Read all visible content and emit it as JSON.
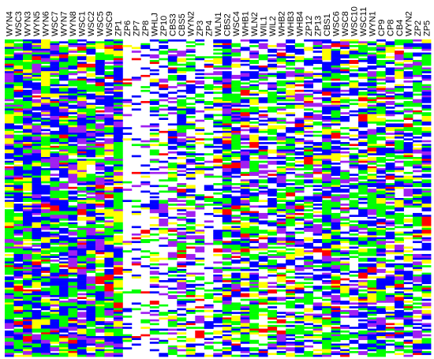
{
  "chart_data": {
    "type": "heatmap",
    "columns": [
      "WYN4",
      "WSC3",
      "WYN3",
      "WYN5",
      "WYN6",
      "WSC7",
      "WYN7",
      "WYN8",
      "WSC1",
      "WSC2",
      "WSC5",
      "WSC9",
      "ZP1",
      "ZP6",
      "ZP7",
      "ZP8",
      "WHLJ",
      "ZP10",
      "CBS3",
      "CBS5",
      "WYN2",
      "ZP3",
      "ZP4",
      "WLN1",
      "CBS2",
      "WSC4",
      "WHB1",
      "WLN2",
      "WIL1",
      "WIL2",
      "WHB2",
      "WHB3",
      "WHB4",
      "ZP12",
      "ZP13",
      "CBS1",
      "WSC6",
      "WSC8",
      "WSC10",
      "WSC11",
      "WYN1",
      "CP9",
      "CP8",
      "CB4",
      "WYN2",
      "ZP2",
      "ZP5"
    ],
    "row_count": 170,
    "states": [
      "blue",
      "green",
      "yellow",
      "purple",
      "red",
      "absent"
    ],
    "state_colors": {
      "blue": "#0000ff",
      "green": "#00ff00",
      "yellow": "#ffff00",
      "purple": "#a020f0",
      "red": "#ff0000",
      "absent": "#ffffff"
    },
    "column_white_bias": [
      0.05,
      0.1,
      0.08,
      0.08,
      0.1,
      0.12,
      0.08,
      0.1,
      0.12,
      0.1,
      0.2,
      0.12,
      0.05,
      0.8,
      0.75,
      0.8,
      0.55,
      0.6,
      0.5,
      0.4,
      0.45,
      0.6,
      0.65,
      0.4,
      0.15,
      0.2,
      0.25,
      0.3,
      0.45,
      0.35,
      0.3,
      0.3,
      0.35,
      0.35,
      0.4,
      0.1,
      0.15,
      0.35,
      0.4,
      0.3,
      0.15,
      0.2,
      0.35,
      0.3,
      0.3,
      0.35,
      0.2
    ],
    "title": "",
    "xlabel": "",
    "ylabel": ""
  }
}
